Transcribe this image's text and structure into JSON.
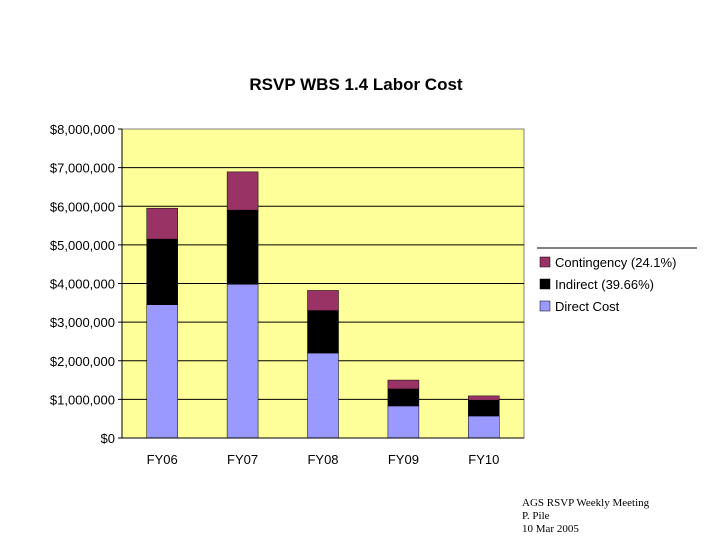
{
  "chart_data": {
    "type": "bar",
    "stacked": true,
    "title": "RSVP WBS 1.4 Labor Cost",
    "xlabel": "",
    "ylabel": "",
    "categories": [
      "FY06",
      "FY07",
      "FY08",
      "FY09",
      "FY10"
    ],
    "series": [
      {
        "name": "Direct Cost",
        "color": "#9999ff",
        "values": [
          3450000,
          3980000,
          2200000,
          830000,
          570000
        ]
      },
      {
        "name": "Indirect (39.66%)",
        "color": "#000000",
        "values": [
          1700000,
          1920000,
          1100000,
          440000,
          410000
        ]
      },
      {
        "name": "Contingency (24.1%)",
        "color": "#993366",
        "values": [
          800000,
          990000,
          520000,
          230000,
          110000
        ]
      }
    ],
    "ylim": [
      0,
      8000000
    ],
    "yticks": [
      0,
      1000000,
      2000000,
      3000000,
      4000000,
      5000000,
      6000000,
      7000000,
      8000000
    ],
    "ytick_labels": [
      "$0",
      "$1,000,000",
      "$2,000,000",
      "$3,000,000",
      "$4,000,000",
      "$5,000,000",
      "$6,000,000",
      "$7,000,000",
      "$8,000,000"
    ],
    "grid": true,
    "legend_position": "right",
    "plot_background": "#ffff99"
  },
  "footer": {
    "line1": "AGS RSVP Weekly Meeting",
    "line2": "P. Pile",
    "line3": "10 Mar 2005"
  }
}
